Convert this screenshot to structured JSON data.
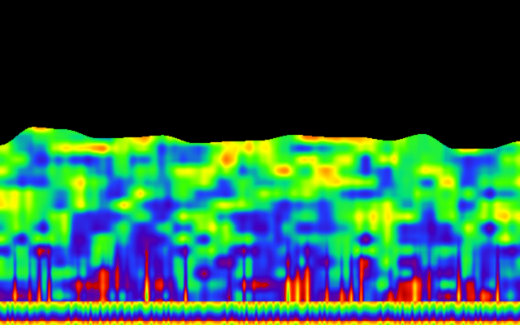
{
  "visualization": {
    "background": "#000000",
    "colormap": [
      "#000000",
      "#c00000",
      "#ff2000",
      "#ff8000",
      "#ffff00",
      "#40ff00",
      "#00e080",
      "#2040ff",
      "#4000c0",
      "#800080"
    ]
  }
}
